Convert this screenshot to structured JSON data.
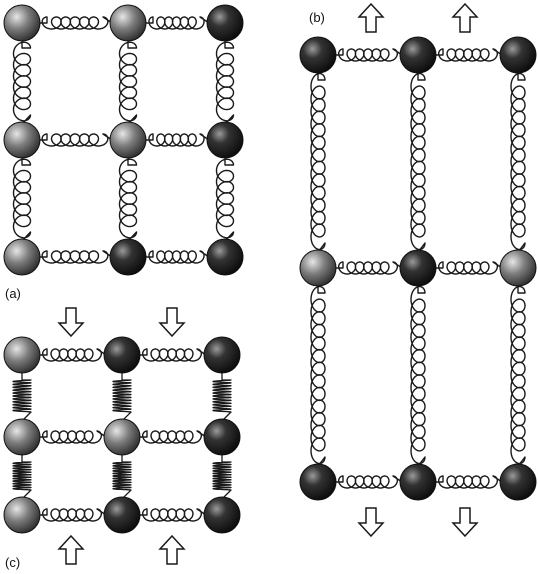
{
  "figure": {
    "panels": [
      {
        "id": "a",
        "label": "(a)",
        "state": "equilibrium",
        "arrows": "none",
        "grid": {
          "rows": 3,
          "cols": 3
        },
        "ball_shades": [
          [
            "gray",
            "gray",
            "dark"
          ],
          [
            "gray",
            "gray",
            "dark"
          ],
          [
            "gray",
            "dark",
            "dark"
          ]
        ]
      },
      {
        "id": "b",
        "label": "(b)",
        "state": "tension",
        "arrows": "outward",
        "grid": {
          "rows": 3,
          "cols": 3
        },
        "ball_shades": [
          [
            "dark",
            "dark",
            "dark"
          ],
          [
            "gray",
            "dark",
            "gray"
          ],
          [
            "dark",
            "dark",
            "dark"
          ]
        ]
      },
      {
        "id": "c",
        "label": "(c)",
        "state": "compression",
        "arrows": "inward",
        "grid": {
          "rows": 3,
          "cols": 3
        },
        "ball_shades": [
          [
            "gray",
            "dark",
            "dark"
          ],
          [
            "gray",
            "gray",
            "dark"
          ],
          [
            "gray",
            "dark",
            "dark"
          ]
        ]
      }
    ],
    "colors": {
      "ink": "#1a1a1a",
      "ball_gray": "#6e6e6e",
      "ball_dark": "#1e1e1e",
      "background": "#ffffff"
    }
  }
}
